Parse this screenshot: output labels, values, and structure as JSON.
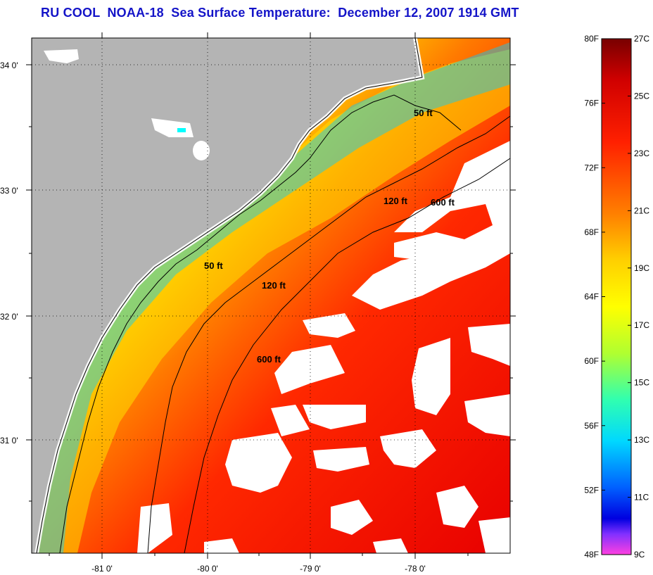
{
  "title": "RU COOL  NOAA-18  Sea Surface Temperature:  December 12, 2007 1914 GMT",
  "map": {
    "lat_ticks": [
      {
        "label": "34 0'",
        "value": 34.0
      },
      {
        "label": "33 0'",
        "value": 33.0
      },
      {
        "label": "32 0'",
        "value": 32.0
      },
      {
        "label": "31 0'",
        "value": 31.0
      }
    ],
    "lon_ticks": [
      {
        "label": "-81 0'",
        "value": -81.0
      },
      {
        "label": "-80 0'",
        "value": -80.0
      },
      {
        "label": "-79 0'",
        "value": -79.0
      },
      {
        "label": "-78 0'",
        "value": -78.0
      }
    ],
    "contours": [
      {
        "label": "50 ft",
        "depth_ft": 50
      },
      {
        "label": "50 ft",
        "depth_ft": 50
      },
      {
        "label": "120 ft",
        "depth_ft": 120
      },
      {
        "label": "120 ft",
        "depth_ft": 120
      },
      {
        "label": "600 ft",
        "depth_ft": 600
      },
      {
        "label": "600 ft",
        "depth_ft": 600
      }
    ],
    "colors": {
      "land": "#b4b4b4",
      "cloud": "#ffffff",
      "contour_line": "#000000"
    }
  },
  "colorbar": {
    "fahrenheit_labels": [
      "80F",
      "76F",
      "72F",
      "68F",
      "64F",
      "60F",
      "56F",
      "52F",
      "48F"
    ],
    "celsius_labels": [
      "27C",
      "25C",
      "23C",
      "21C",
      "19C",
      "17C",
      "15C",
      "13C",
      "11C",
      "9C"
    ],
    "fahrenheit_range": [
      48,
      80
    ],
    "celsius_range": [
      9,
      27
    ]
  }
}
